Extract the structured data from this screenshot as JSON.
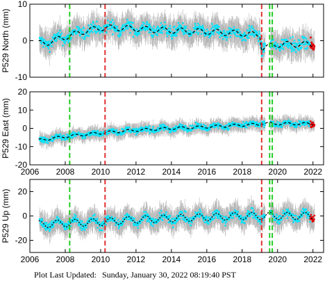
{
  "footer": {
    "label": "Plot Last Updated:",
    "value": "Sunday, January 30, 2022 08:19:40 PST"
  },
  "colors": {
    "error_bars": "#b4b4b4",
    "points": "#00e5ff",
    "recent_points": "#e00000",
    "model_line": "#000000",
    "green_lines": "#22cc22",
    "red_lines": "#e03030"
  },
  "chart_data": [
    {
      "type": "scatter",
      "ylabel": "P529 North (mm)",
      "xlim": [
        2006,
        2022.6
      ],
      "ylim": [
        -10,
        10
      ],
      "yticks": [
        "-10",
        "0",
        "10"
      ],
      "xticks": [
        "2006",
        "2008",
        "2010",
        "2012",
        "2014",
        "2016",
        "2018",
        "2020",
        "2022"
      ],
      "show_xtick_labels": false,
      "vlines_green": [
        2008.25,
        2019.55,
        2019.7
      ],
      "vlines_red": [
        2010.25,
        2019.1
      ],
      "trend_x": [
        2006.5,
        2007.0,
        2008.0,
        2009.0,
        2010.0,
        2011.0,
        2012.0,
        2013.0,
        2014.0,
        2015.0,
        2016.0,
        2017.0,
        2018.0,
        2019.0,
        2019.1,
        2020.0,
        2021.0,
        2022.0
      ],
      "trend_y": [
        -0.8,
        -0.5,
        1.0,
        2.5,
        3.5,
        3.5,
        3.3,
        3.0,
        2.8,
        2.6,
        2.5,
        2.2,
        2.0,
        1.5,
        -2.0,
        -1.0,
        -1.0,
        -1.0
      ],
      "seasonal_amplitude": 0.8,
      "point_scatter": 1.5,
      "error_bar": 3.5
    },
    {
      "type": "scatter",
      "ylabel": "P529 East (mm)",
      "xlim": [
        2006,
        2022.6
      ],
      "ylim": [
        -20,
        20
      ],
      "yticks": [
        "-20",
        "-10",
        "0",
        "10",
        "20"
      ],
      "xticks": [
        "2006",
        "2008",
        "2010",
        "2012",
        "2014",
        "2016",
        "2018",
        "2020",
        "2022"
      ],
      "show_xtick_labels": true,
      "vlines_green": [
        2008.25,
        2019.55,
        2019.7
      ],
      "vlines_red": [
        2010.25,
        2019.1
      ],
      "trend_x": [
        2006.5,
        2008.0,
        2010.0,
        2012.0,
        2014.0,
        2016.0,
        2018.0,
        2019.0,
        2019.1,
        2020.0,
        2022.0
      ],
      "trend_y": [
        -6.5,
        -4.5,
        -2.5,
        -1.0,
        0.0,
        0.8,
        1.8,
        2.2,
        2.8,
        2.5,
        2.5
      ],
      "seasonal_amplitude": 0.7,
      "point_scatter": 1.5,
      "error_bar": 3.5
    },
    {
      "type": "scatter",
      "ylabel": "P529 Up (mm)",
      "xlim": [
        2006,
        2022.6
      ],
      "ylim": [
        -30,
        30
      ],
      "yticks": [
        "-20",
        "0",
        "20"
      ],
      "xticks": [
        "2006",
        "2008",
        "2010",
        "2012",
        "2014",
        "2016",
        "2018",
        "2020",
        "2022"
      ],
      "show_xtick_labels": true,
      "vlines_green": [
        2008.25,
        2019.55,
        2019.7
      ],
      "vlines_red": [
        2010.25,
        2019.1
      ],
      "trend_x": [
        2006.5,
        2008.0,
        2010.0,
        2012.0,
        2014.0,
        2016.0,
        2018.0,
        2020.0,
        2022.0
      ],
      "trend_y": [
        -7,
        -6,
        -5,
        -3,
        -2,
        -1,
        0,
        0,
        0
      ],
      "seasonal_amplitude": 3.0,
      "point_scatter": 3.5,
      "error_bar": 9
    }
  ]
}
